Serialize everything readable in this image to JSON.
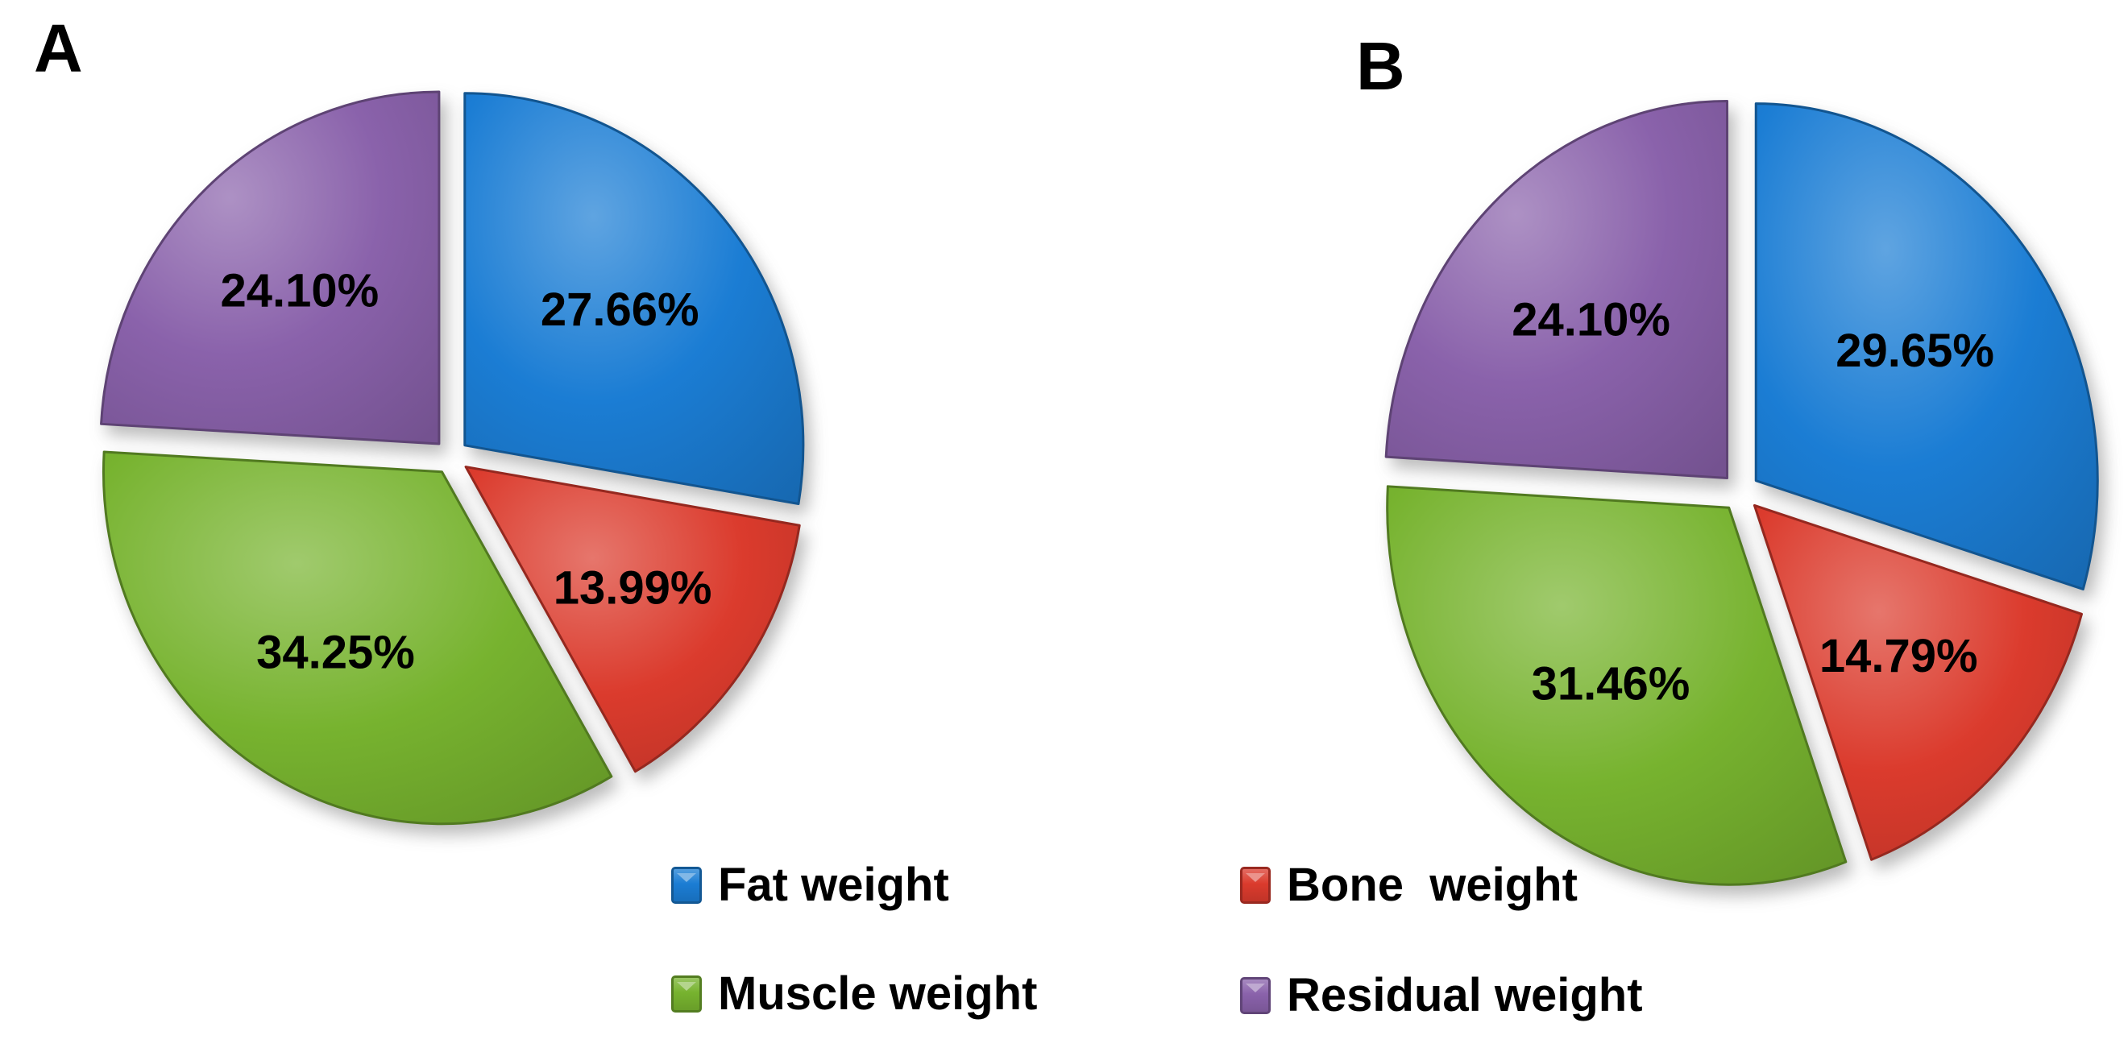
{
  "panels": [
    {
      "label": "A"
    },
    {
      "label": "B"
    }
  ],
  "chart_data": [
    {
      "type": "pie",
      "panel": "A",
      "categories": [
        "Fat weight",
        "Bone weight",
        "Muscle weight",
        "Residual weight"
      ],
      "values": [
        27.66,
        13.99,
        34.25,
        24.1
      ],
      "labels": [
        "27.66%",
        "13.99%",
        "34.25%",
        "24.10%"
      ],
      "colors": [
        "#1B7DD4",
        "#DB3B2D",
        "#77B32F",
        "#8A62AB"
      ],
      "start_angle_deg": 0,
      "direction": "clockwise",
      "exploded": true,
      "legend_position": "bottom"
    },
    {
      "type": "pie",
      "panel": "B",
      "categories": [
        "Fat weight",
        "Bone weight",
        "Muscle weight",
        "Residual weight"
      ],
      "values": [
        29.65,
        14.79,
        31.46,
        24.1
      ],
      "labels": [
        "29.65%",
        "14.79%",
        "31.46%",
        "24.10%"
      ],
      "colors": [
        "#1B7DD4",
        "#DB3B2D",
        "#77B32F",
        "#8A62AB"
      ],
      "start_angle_deg": 0,
      "direction": "clockwise",
      "exploded": true,
      "legend_position": "bottom"
    }
  ],
  "legend": {
    "items": [
      {
        "label": "Fat weight",
        "color": "#1B7DD4"
      },
      {
        "label": "Bone  weight",
        "color": "#DB3B2D"
      },
      {
        "label": "Muscle weight",
        "color": "#77B32F"
      },
      {
        "label": "Residual weight",
        "color": "#8A62AB"
      }
    ]
  }
}
